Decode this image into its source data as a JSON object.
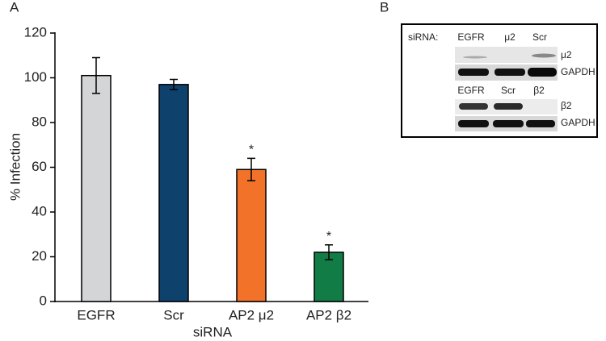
{
  "chart_data": {
    "type": "bar",
    "panel_label": "A",
    "ylabel": "% Infection",
    "xlabel": "siRNA",
    "categories": [
      "EGFR",
      "Scr",
      "AP2 μ2",
      "AP2 β2"
    ],
    "values": [
      101,
      97,
      59,
      22
    ],
    "errors": [
      8,
      2.3,
      5,
      3.3
    ],
    "colors": [
      "#d4d5d7",
      "#0e426c",
      "#f2722a",
      "#127c47"
    ],
    "annotations": [
      null,
      null,
      "*",
      "*"
    ],
    "ylim": [
      0,
      120
    ],
    "yticks": [
      0,
      20,
      40,
      60,
      80,
      100,
      120
    ]
  },
  "panel_b": {
    "label": "B",
    "siRNA_label": "siRNA:",
    "blots": [
      {
        "lanes": [
          "EGFR",
          "μ2",
          "Scr"
        ],
        "rows": [
          "μ2",
          "GAPDH"
        ]
      },
      {
        "lanes": [
          "EGFR",
          "Scr",
          "β2"
        ],
        "rows": [
          "β2",
          "GAPDH"
        ]
      }
    ]
  }
}
